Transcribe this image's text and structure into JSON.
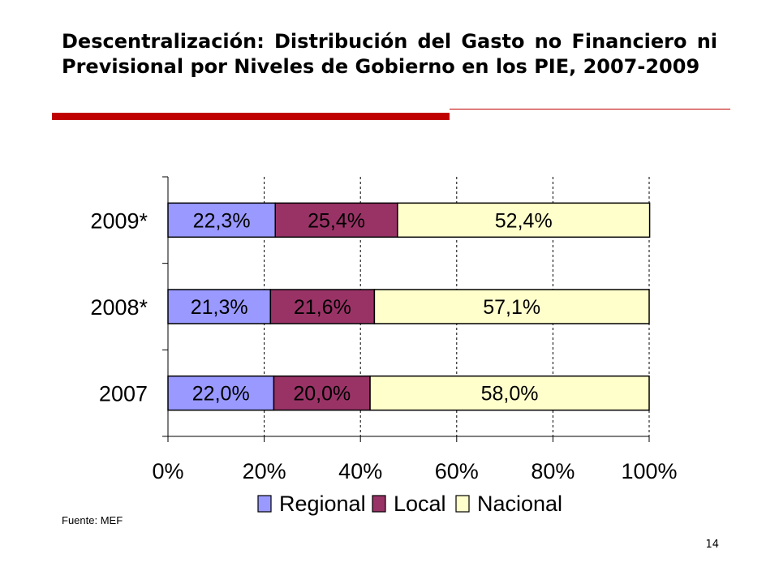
{
  "slide": {
    "title": "Descentralización: Distribución del Gasto no Financiero ni Previsional por Niveles de Gobierno en los PIE, 2007-2009",
    "source": "Fuente: MEF",
    "page_number": "14",
    "accent_color": "#c00000"
  },
  "chart_data": {
    "type": "bar",
    "orientation": "horizontal",
    "stacked": "percent",
    "categories": [
      "2009*",
      "2008*",
      "2007"
    ],
    "series": [
      {
        "name": "Regional",
        "color": "#9999ff",
        "values": [
          22.3,
          21.3,
          22.0
        ],
        "labels": [
          "22,3%",
          "21,3%",
          "22,0%"
        ]
      },
      {
        "name": "Local",
        "color": "#993366",
        "values": [
          25.4,
          21.6,
          20.0
        ],
        "labels": [
          "25,4%",
          "21,6%",
          "20,0%"
        ]
      },
      {
        "name": "Nacional",
        "color": "#ffffcc",
        "values": [
          52.4,
          57.1,
          58.0
        ],
        "labels": [
          "52,4%",
          "57,1%",
          "58,0%"
        ]
      }
    ],
    "x_ticks": [
      0,
      20,
      40,
      60,
      80,
      100
    ],
    "x_tick_labels": [
      "0%",
      "20%",
      "40%",
      "60%",
      "80%",
      "100%"
    ],
    "xlim": [
      0,
      100
    ],
    "grid": "vertical dashed",
    "legend_position": "bottom"
  }
}
